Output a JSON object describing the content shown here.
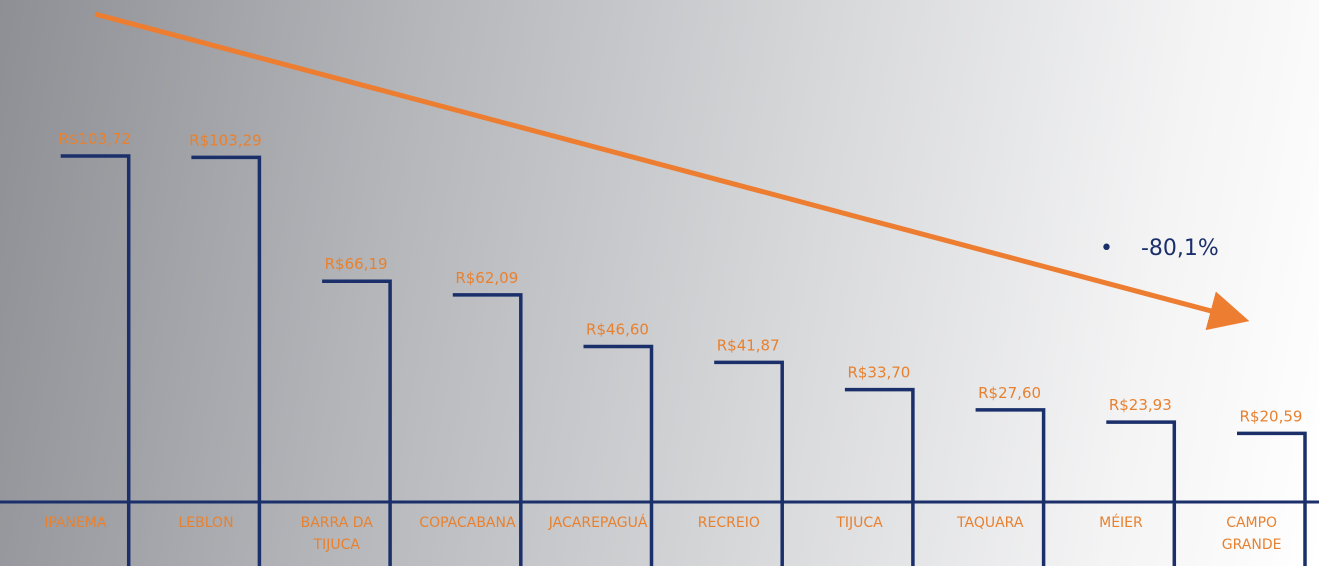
{
  "chart_data": {
    "type": "step-bar",
    "categories": [
      "IPANEMA",
      "LEBLON",
      "BARRA DA TIJUCA",
      "COPACABANA",
      "JACAREPAGUÁ",
      "RECREIO",
      "TIJUCA",
      "TAQUARA",
      "MÉIER",
      "CAMPO GRANDE"
    ],
    "values": [
      103.72,
      103.29,
      66.19,
      62.09,
      46.6,
      41.87,
      33.7,
      27.6,
      23.93,
      20.59
    ],
    "value_labels": [
      "R$103,72",
      "R$103,29",
      "R$66,19",
      "R$62,09",
      "R$46,60",
      "R$41,87",
      "R$33,70",
      "R$27,60",
      "R$23,93",
      "R$20,59"
    ],
    "color": "#1b2f6b",
    "label_color": "#e8812f",
    "annotation": "-80,1%"
  }
}
